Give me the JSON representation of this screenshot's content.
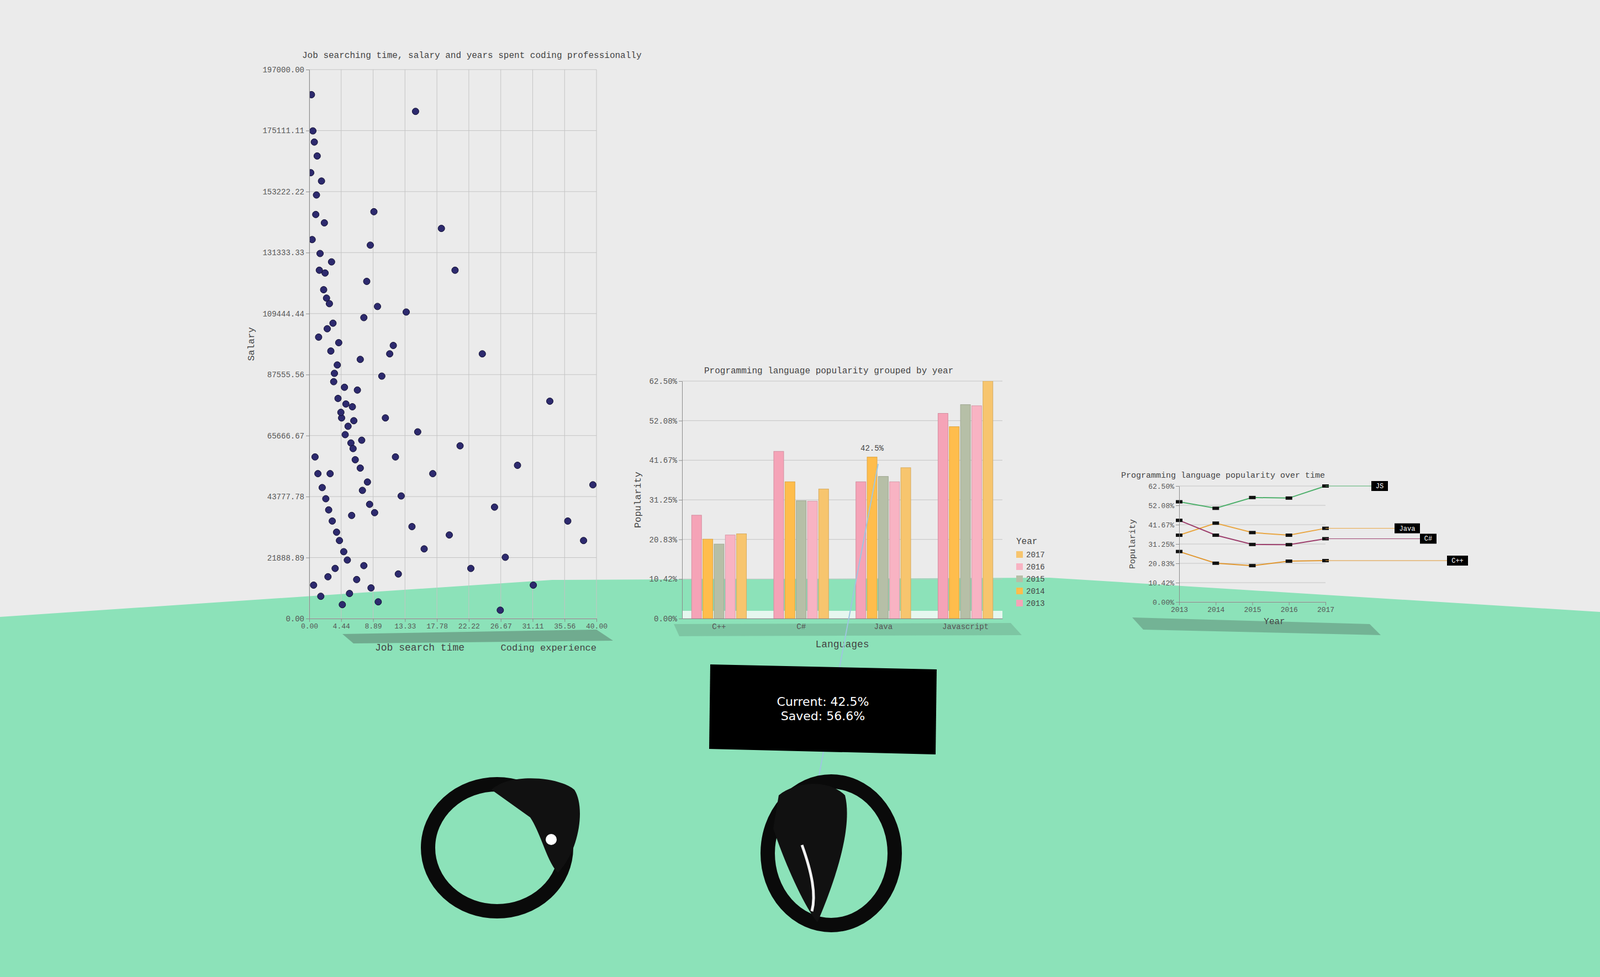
{
  "chart_data": [
    {
      "type": "scatter",
      "title": "Job searching time, salary and years spent coding professionally",
      "x_label": "Job search time",
      "y_label": "Salary",
      "z_label": "Coding experience",
      "color": "#2d2a6e",
      "marker": "circle",
      "grid": true,
      "xlim": [
        0,
        40
      ],
      "ylim": [
        0,
        197000
      ],
      "xticks": [
        {
          "value": 0,
          "label": "0.00"
        },
        {
          "value": 4.44,
          "label": "4.44"
        },
        {
          "value": 8.89,
          "label": "8.89"
        },
        {
          "value": 13.33,
          "label": "13.33"
        },
        {
          "value": 17.78,
          "label": "17.78"
        },
        {
          "value": 22.22,
          "label": "22.22"
        },
        {
          "value": 26.67,
          "label": "26.67"
        },
        {
          "value": 31.11,
          "label": "31.11"
        },
        {
          "value": 35.56,
          "label": "35.56"
        },
        {
          "value": 40,
          "label": "40.00"
        }
      ],
      "yticks": [
        {
          "value": 0,
          "label": "0.00"
        },
        {
          "value": 21888.89,
          "label": "21888.89"
        },
        {
          "value": 43777.78,
          "label": "43777.78"
        },
        {
          "value": 65666.67,
          "label": "65666.67"
        },
        {
          "value": 87555.56,
          "label": "87555.56"
        },
        {
          "value": 109444.44,
          "label": "109444.44"
        },
        {
          "value": 131333.33,
          "label": "131333.33"
        },
        {
          "value": 153222.22,
          "label": "153222.22"
        },
        {
          "value": 175111.11,
          "label": "175111.11"
        },
        {
          "value": 197000,
          "label": "197000.00"
        }
      ],
      "x": [
        0.5,
        1,
        1.5,
        2,
        2.5,
        3,
        3.5,
        4,
        4.5,
        5,
        0.8,
        1.2,
        1.8,
        2.3,
        2.7,
        3.2,
        3.8,
        4.2,
        4.8,
        5.3,
        5.8,
        6.2,
        6.7,
        7.1,
        7.6,
        8.0,
        8.5,
        9.0,
        9.5,
        10.1,
        0.3,
        1.1,
        2.1,
        3.1,
        4.1,
        5.1,
        6.1,
        7.1,
        8.1,
        9.1,
        10.6,
        11.2,
        12.0,
        12.8,
        13.5,
        14.3,
        15.1,
        16.0,
        17.2,
        18.4,
        0.6,
        1.6,
        2.6,
        3.6,
        4.6,
        5.6,
        6.6,
        7.6,
        8.6,
        9.6,
        0.2,
        0.9,
        1.4,
        2.4,
        3.4,
        4.4,
        5.4,
        6.4,
        7.4,
        8.4,
        19.5,
        21.0,
        22.5,
        24.1,
        25.8,
        27.3,
        29.0,
        31.2,
        33.5,
        36.0,
        1.3,
        2.8,
        3.9,
        4.9,
        6.0,
        7.3,
        0.4,
        1.7,
        2.2,
        3.3,
        38.2,
        39.5,
        14.8,
        20.3,
        26.6,
        11.7,
        0.7,
        2.9,
        5.9,
        12.4
      ],
      "y": [
        175000,
        152000,
        131000,
        118000,
        104000,
        96000,
        88000,
        79000,
        72000,
        66000,
        58000,
        52000,
        47000,
        43000,
        39000,
        35000,
        31000,
        28000,
        24000,
        21000,
        63000,
        71000,
        82000,
        93000,
        108000,
        121000,
        134000,
        146000,
        112000,
        87000,
        188000,
        166000,
        142000,
        128000,
        99000,
        77000,
        61000,
        54000,
        49000,
        38000,
        72000,
        95000,
        58000,
        44000,
        110000,
        33000,
        67000,
        25000,
        52000,
        140000,
        12000,
        8000,
        15000,
        18000,
        5000,
        9000,
        14000,
        19000,
        11000,
        6000,
        160000,
        145000,
        125000,
        115000,
        85000,
        74000,
        69000,
        57000,
        46000,
        41000,
        30000,
        62000,
        18000,
        95000,
        40000,
        22000,
        55000,
        12000,
        78000,
        35000,
        101000,
        113000,
        91000,
        83000,
        76000,
        64000,
        136000,
        157000,
        124000,
        106000,
        28000,
        48000,
        182000,
        125000,
        3000,
        98000,
        171000,
        52000,
        37000,
        16000
      ]
    },
    {
      "type": "bar",
      "title": "Programming language popularity grouped by year",
      "x_label": "Languages",
      "y_label": "Popularity",
      "legend_title": "Year",
      "legend": "right",
      "grid": true,
      "categories": [
        "C++",
        "C#",
        "Java",
        "Javascript"
      ],
      "series": [
        {
          "name": "2013",
          "color": "#f5a3b7",
          "values": [
            27.2,
            44.0,
            36.0,
            54.0
          ]
        },
        {
          "name": "2014",
          "color": "#ffbd4c",
          "values": [
            20.9,
            36.0,
            42.5,
            50.5
          ]
        },
        {
          "name": "2015",
          "color": "#b6bfa7",
          "values": [
            19.6,
            31.0,
            37.4,
            56.3
          ]
        },
        {
          "name": "2016",
          "color": "#f8b3c3",
          "values": [
            22.0,
            30.9,
            36.0,
            56.0
          ]
        },
        {
          "name": "2017",
          "color": "#f7c56e",
          "values": [
            22.3,
            34.1,
            39.7,
            62.5
          ]
        }
      ],
      "ylim": [
        0,
        62.5
      ],
      "yticks": [
        {
          "value": 0,
          "label": "0.00%"
        },
        {
          "value": 10.42,
          "label": "10.42%"
        },
        {
          "value": 20.83,
          "label": "20.83%"
        },
        {
          "value": 31.25,
          "label": "31.25%"
        },
        {
          "value": 41.67,
          "label": "41.67%"
        },
        {
          "value": 52.08,
          "label": "52.08%"
        },
        {
          "value": 62.5,
          "label": "62.50%"
        }
      ],
      "annotations": [
        {
          "text": "42.5%",
          "category": "Java",
          "series": "2014"
        }
      ]
    },
    {
      "type": "line",
      "title": "Programming language popularity over time",
      "x_label": "Year",
      "y_label": "Popularity",
      "grid": true,
      "x": [
        2013,
        2014,
        2015,
        2016,
        2017
      ],
      "xlim": [
        2013,
        2017
      ],
      "xticks": [
        2013,
        2014,
        2015,
        2016,
        2017
      ],
      "ylim": [
        0,
        62.5
      ],
      "yticks": [
        {
          "value": 0,
          "label": "0.00%"
        },
        {
          "value": 10.42,
          "label": "10.42%"
        },
        {
          "value": 20.83,
          "label": "20.83%"
        },
        {
          "value": 31.25,
          "label": "31.25%"
        },
        {
          "value": 41.67,
          "label": "41.67%"
        },
        {
          "value": 52.08,
          "label": "52.08%"
        },
        {
          "value": 62.5,
          "label": "62.50%"
        }
      ],
      "series": [
        {
          "name": "JS",
          "color": "#4caf6a",
          "marker": "square",
          "values": [
            54.0,
            50.5,
            56.3,
            56.0,
            62.5
          ]
        },
        {
          "name": "Java",
          "color": "#e9a642",
          "marker": "square",
          "values": [
            36.0,
            42.5,
            37.4,
            36.0,
            39.7
          ]
        },
        {
          "name": "C#",
          "color": "#9c3d6b",
          "marker": "square",
          "values": [
            44.0,
            36.0,
            31.0,
            30.9,
            34.1
          ]
        },
        {
          "name": "C++",
          "color": "#e0962e",
          "marker": "square",
          "values": [
            27.2,
            20.9,
            19.6,
            22.0,
            22.3
          ]
        }
      ]
    }
  ],
  "overlay": {
    "tooltip": [
      "Current: 42.5%",
      "Saved: 56.6%"
    ]
  }
}
